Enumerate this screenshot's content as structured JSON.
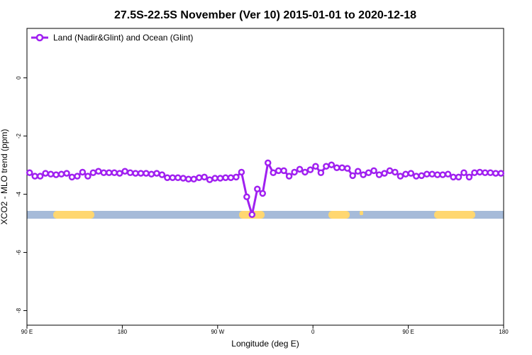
{
  "chart_data": {
    "type": "line",
    "title": "27.5S-22.5S November (Ver 10)   2015-01-01 to 2020-12-18",
    "x_label": "Longitude (deg E)",
    "y_label": "XCO2 - MLO trend (ppm)",
    "xlim": [
      90,
      540
    ],
    "ylim": [
      -8.5,
      1.7
    ],
    "xticks": [
      {
        "value": 90,
        "label": "90 E"
      },
      180,
      {
        "value": 270,
        "label": "90 W"
      },
      {
        "value": 360,
        "label": "0"
      },
      {
        "value": 450,
        "label": "90 E"
      },
      {
        "value": 540,
        "label": "180"
      }
    ],
    "yticks": [
      0,
      -2,
      -4,
      -6,
      -8
    ],
    "legend": "top-left",
    "x": [
      92.5,
      97.5,
      102.5,
      107.5,
      112.5,
      117.5,
      122.5,
      127.5,
      132.5,
      137.5,
      142.5,
      147.5,
      152.5,
      157.5,
      162.5,
      167.5,
      172.5,
      177.5,
      182.5,
      187.5,
      192.5,
      197.5,
      202.5,
      207.5,
      212.5,
      217.5,
      222.5,
      227.5,
      232.5,
      237.5,
      242.5,
      247.5,
      252.5,
      257.5,
      262.5,
      267.5,
      272.5,
      277.5,
      282.5,
      287.5,
      292.5,
      297.5,
      302.5,
      307.5,
      312.5,
      317.5,
      322.5,
      327.5,
      332.5,
      337.5,
      342.5,
      347.5,
      352.5,
      357.5,
      362.5,
      367.5,
      372.5,
      377.5,
      382.5,
      387.5,
      392.5,
      397.5,
      402.5,
      407.5,
      412.5,
      417.5,
      422.5,
      427.5,
      432.5,
      437.5,
      442.5,
      447.5,
      452.5,
      457.5,
      462.5,
      467.5,
      472.5,
      477.5,
      482.5,
      487.5,
      492.5,
      497.5,
      502.5,
      507.5,
      512.5,
      517.5,
      522.5,
      527.5,
      532.5,
      537.5
    ],
    "series": [
      {
        "name": "Land (Nadir&Glint) and Ocean (Glint)",
        "color": "#a020f0",
        "values": [
          -3.26,
          -3.38,
          -3.38,
          -3.28,
          -3.31,
          -3.33,
          -3.31,
          -3.28,
          -3.41,
          -3.38,
          -3.24,
          -3.38,
          -3.26,
          -3.21,
          -3.26,
          -3.26,
          -3.26,
          -3.28,
          -3.21,
          -3.26,
          -3.28,
          -3.28,
          -3.28,
          -3.31,
          -3.28,
          -3.33,
          -3.43,
          -3.43,
          -3.43,
          -3.45,
          -3.48,
          -3.48,
          -3.43,
          -3.41,
          -3.5,
          -3.45,
          -3.45,
          -3.43,
          -3.43,
          -3.41,
          -3.24,
          -4.09,
          -4.7,
          -3.82,
          -3.97,
          -2.92,
          -3.26,
          -3.19,
          -3.19,
          -3.38,
          -3.24,
          -3.14,
          -3.24,
          -3.16,
          -3.04,
          -3.26,
          -3.04,
          -2.99,
          -3.09,
          -3.09,
          -3.11,
          -3.36,
          -3.21,
          -3.33,
          -3.26,
          -3.19,
          -3.33,
          -3.28,
          -3.19,
          -3.24,
          -3.38,
          -3.31,
          -3.28,
          -3.38,
          -3.36,
          -3.31,
          -3.31,
          -3.33,
          -3.33,
          -3.31,
          -3.41,
          -3.41,
          -3.26,
          -3.41,
          -3.26,
          -3.24,
          -3.26,
          -3.26,
          -3.28,
          -3.28
        ]
      }
    ]
  }
}
